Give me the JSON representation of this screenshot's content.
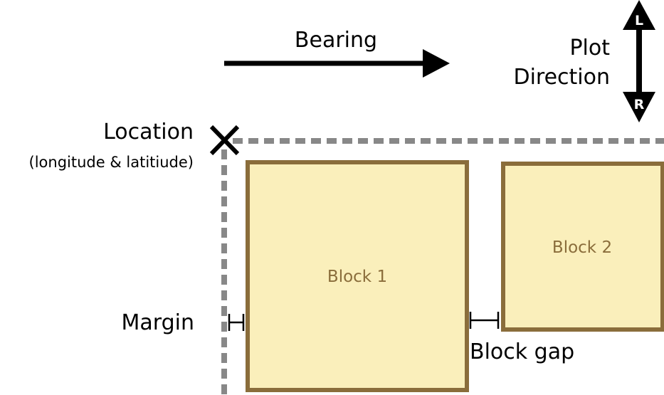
{
  "labels": {
    "bearing": "Bearing",
    "plot_direction_line1": "Plot",
    "plot_direction_line2": "Direction",
    "location": "Location",
    "location_sub": "(longitude & latitiude)",
    "margin": "Margin",
    "block_gap": "Block gap"
  },
  "direction_arrow": {
    "top": "L",
    "bottom": "R"
  },
  "blocks": [
    {
      "label": "Block 1"
    },
    {
      "label": "Block 2"
    }
  ],
  "colors": {
    "block_fill": "#faefbb",
    "block_stroke": "#8a6d3b",
    "block_label": "#8a6d3b",
    "guide_line": "#888888",
    "ink": "#000000"
  }
}
